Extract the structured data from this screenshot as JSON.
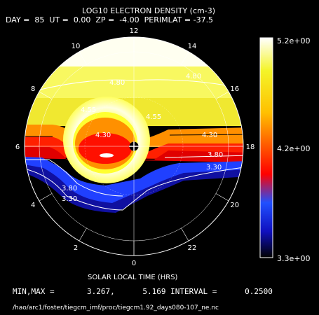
{
  "header": {
    "title": "LOG10 ELECTRON DENSITY (cm-3)",
    "params": "DAY =  85  UT =  0.00  ZP =  -4.00  PERIMLAT = -37.5"
  },
  "colorbar": {
    "max_label": "5.2e+00",
    "mid_label": "4.2e+00",
    "min_label": "3.3e+00",
    "colors": [
      "#000000",
      "#1010c0",
      "#2050ff",
      "#ff0000",
      "#ff6000",
      "#ffc000",
      "#f4f428",
      "#ffffff"
    ]
  },
  "footer": {
    "xlabel": "SOLAR LOCAL TIME (HRS)",
    "stats": "MIN,MAX =       3.267,      5.169 INTERVAL =      0.2500",
    "path": "/hao/arc1/foster/tiegcm_imf/proc/tiegcm1.92_days080-107_ne.nc"
  },
  "chart_data": {
    "type": "polar-contour",
    "title": "LOG10 ELECTRON DENSITY (cm-3)",
    "xlabel": "SOLAR LOCAL TIME (HRS)",
    "min": 3.267,
    "max": 5.169,
    "interval": 0.25,
    "colorbar_range": [
      3.3,
      5.2
    ],
    "local_time_ticks": [
      {
        "hour": 0,
        "label": "0"
      },
      {
        "hour": 2,
        "label": "2"
      },
      {
        "hour": 4,
        "label": "4"
      },
      {
        "hour": 6,
        "label": "6"
      },
      {
        "hour": 8,
        "label": "8"
      },
      {
        "hour": 10,
        "label": "10"
      },
      {
        "hour": 12,
        "label": "12"
      },
      {
        "hour": 14,
        "label": "14"
      },
      {
        "hour": 16,
        "label": "16"
      },
      {
        "hour": 18,
        "label": "18"
      },
      {
        "hour": 20,
        "label": "20"
      },
      {
        "hour": 22,
        "label": "22"
      }
    ],
    "contour_labels": [
      "4.80",
      "4.80",
      "4.30",
      "4.30",
      "3.80",
      "3.30",
      "3.80",
      "3.30",
      "4.55",
      "4.55"
    ]
  }
}
